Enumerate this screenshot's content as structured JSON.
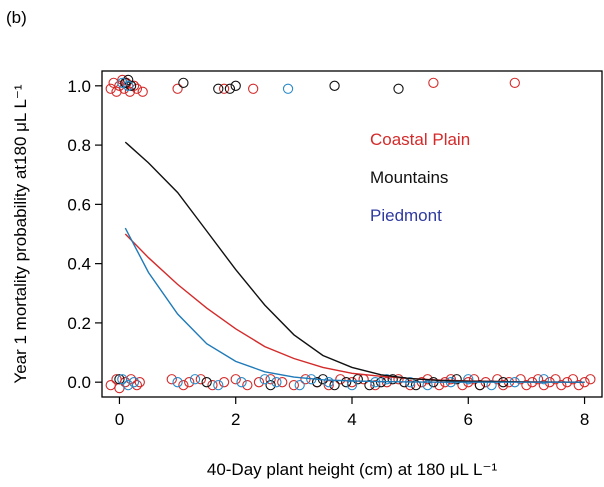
{
  "panel_label": "(b)",
  "chart_data": {
    "type": "scatter",
    "xlabel": "40-Day plant height (cm) at 180 μL L⁻¹",
    "ylabel": "Year 1 mortality probability at180 μL L⁻¹",
    "xlim": [
      -0.3,
      8.3
    ],
    "ylim": [
      -0.05,
      1.05
    ],
    "x_ticks": [
      0,
      2,
      4,
      6,
      8
    ],
    "x_tick_labels": [
      "0",
      "2",
      "4",
      "6",
      "8"
    ],
    "y_ticks": [
      0.0,
      0.2,
      0.4,
      0.6,
      0.8,
      1.0
    ],
    "y_tick_labels": [
      "0.0",
      "0.2",
      "0.4",
      "0.6",
      "0.8",
      "1.0"
    ],
    "legend": {
      "position": "right",
      "entries": [
        "Coastal Plain",
        "Mountains",
        "Piedmont"
      ]
    },
    "colors": {
      "Coastal Plain": "#d42a2a",
      "Mountains": "#111111",
      "Piedmont": "#2f3aa0",
      "Piedmont_curve": "#1f7ab8",
      "Piedmont_points": "#2a8ac8"
    },
    "series": [
      {
        "name": "Coastal Plain",
        "curve": {
          "x": [
            0.1,
            0.5,
            1.0,
            1.5,
            2.0,
            2.5,
            3.0,
            3.5,
            4.0,
            4.5,
            5.0,
            5.5,
            6.0,
            7.0,
            8.0
          ],
          "y": [
            0.5,
            0.42,
            0.33,
            0.25,
            0.18,
            0.12,
            0.08,
            0.05,
            0.03,
            0.02,
            0.012,
            0.007,
            0.004,
            0.001,
            0.0
          ]
        },
        "points": [
          {
            "x": -0.15,
            "y": 0.99
          },
          {
            "x": -0.1,
            "y": 1.01
          },
          {
            "x": -0.05,
            "y": 0.98
          },
          {
            "x": 0.0,
            "y": 1.0
          },
          {
            "x": 0.05,
            "y": 1.02
          },
          {
            "x": 0.08,
            "y": 0.99
          },
          {
            "x": 0.12,
            "y": 1.01
          },
          {
            "x": 0.18,
            "y": 0.98
          },
          {
            "x": 0.25,
            "y": 1.0
          },
          {
            "x": 0.3,
            "y": 0.99
          },
          {
            "x": 0.4,
            "y": 0.98
          },
          {
            "x": 1.0,
            "y": 0.99
          },
          {
            "x": 1.8,
            "y": 0.99
          },
          {
            "x": 2.3,
            "y": 0.99
          },
          {
            "x": 5.4,
            "y": 1.01
          },
          {
            "x": 6.8,
            "y": 1.01
          },
          {
            "x": -0.15,
            "y": -0.01
          },
          {
            "x": -0.05,
            "y": 0.01
          },
          {
            "x": 0.0,
            "y": -0.02
          },
          {
            "x": 0.1,
            "y": 0.0
          },
          {
            "x": 0.2,
            "y": 0.01
          },
          {
            "x": 0.3,
            "y": -0.01
          },
          {
            "x": 0.35,
            "y": 0.0
          },
          {
            "x": 0.9,
            "y": 0.01
          },
          {
            "x": 1.1,
            "y": -0.01
          },
          {
            "x": 1.2,
            "y": 0.0
          },
          {
            "x": 1.4,
            "y": 0.01
          },
          {
            "x": 1.6,
            "y": -0.01
          },
          {
            "x": 1.8,
            "y": 0.0
          },
          {
            "x": 2.0,
            "y": 0.01
          },
          {
            "x": 2.2,
            "y": -0.01
          },
          {
            "x": 2.4,
            "y": 0.0
          },
          {
            "x": 2.6,
            "y": 0.01
          },
          {
            "x": 2.8,
            "y": 0.0
          },
          {
            "x": 3.0,
            "y": -0.01
          },
          {
            "x": 3.2,
            "y": 0.01
          },
          {
            "x": 3.4,
            "y": 0.0
          },
          {
            "x": 3.6,
            "y": -0.01
          },
          {
            "x": 3.8,
            "y": 0.01
          },
          {
            "x": 4.0,
            "y": 0.0
          },
          {
            "x": 4.2,
            "y": 0.01
          },
          {
            "x": 4.4,
            "y": -0.01
          },
          {
            "x": 4.6,
            "y": 0.0
          },
          {
            "x": 4.8,
            "y": 0.01
          },
          {
            "x": 5.0,
            "y": -0.01
          },
          {
            "x": 5.2,
            "y": 0.0
          },
          {
            "x": 5.3,
            "y": 0.01
          },
          {
            "x": 5.5,
            "y": -0.01
          },
          {
            "x": 5.6,
            "y": 0.0
          },
          {
            "x": 5.7,
            "y": 0.01
          },
          {
            "x": 5.9,
            "y": -0.01
          },
          {
            "x": 6.0,
            "y": 0.0
          },
          {
            "x": 6.1,
            "y": 0.01
          },
          {
            "x": 6.2,
            "y": -0.01
          },
          {
            "x": 6.3,
            "y": 0.0
          },
          {
            "x": 6.5,
            "y": 0.01
          },
          {
            "x": 6.6,
            "y": -0.01
          },
          {
            "x": 6.7,
            "y": 0.0
          },
          {
            "x": 6.9,
            "y": 0.01
          },
          {
            "x": 7.0,
            "y": -0.01
          },
          {
            "x": 7.1,
            "y": 0.0
          },
          {
            "x": 7.2,
            "y": 0.01
          },
          {
            "x": 7.3,
            "y": -0.01
          },
          {
            "x": 7.4,
            "y": 0.0
          },
          {
            "x": 7.5,
            "y": 0.01
          },
          {
            "x": 7.6,
            "y": -0.01
          },
          {
            "x": 7.7,
            "y": 0.0
          },
          {
            "x": 7.8,
            "y": 0.01
          },
          {
            "x": 7.9,
            "y": -0.01
          },
          {
            "x": 8.0,
            "y": 0.0
          },
          {
            "x": 8.1,
            "y": 0.01
          }
        ]
      },
      {
        "name": "Mountains",
        "curve": {
          "x": [
            0.1,
            0.5,
            1.0,
            1.5,
            2.0,
            2.5,
            3.0,
            3.5,
            4.0,
            4.5,
            5.0,
            5.5,
            6.0,
            7.0,
            8.0
          ],
          "y": [
            0.81,
            0.74,
            0.64,
            0.51,
            0.38,
            0.26,
            0.16,
            0.09,
            0.05,
            0.025,
            0.012,
            0.006,
            0.003,
            0.001,
            0.0
          ]
        },
        "points": [
          {
            "x": 0.1,
            "y": 1.01
          },
          {
            "x": 0.15,
            "y": 1.02
          },
          {
            "x": 0.2,
            "y": 1.0
          },
          {
            "x": 1.1,
            "y": 1.01
          },
          {
            "x": 1.9,
            "y": 0.99
          },
          {
            "x": 2.0,
            "y": 1.0
          },
          {
            "x": 1.7,
            "y": 0.99
          },
          {
            "x": 3.7,
            "y": 1.0
          },
          {
            "x": 4.8,
            "y": 0.99
          },
          {
            "x": 0.0,
            "y": 0.01
          },
          {
            "x": 1.5,
            "y": 0.0
          },
          {
            "x": 2.6,
            "y": -0.01
          },
          {
            "x": 3.4,
            "y": 0.0
          },
          {
            "x": 3.5,
            "y": 0.01
          },
          {
            "x": 3.7,
            "y": -0.01
          },
          {
            "x": 3.9,
            "y": 0.0
          },
          {
            "x": 4.1,
            "y": 0.01
          },
          {
            "x": 4.3,
            "y": -0.01
          },
          {
            "x": 4.5,
            "y": 0.0
          },
          {
            "x": 4.7,
            "y": 0.01
          },
          {
            "x": 4.9,
            "y": 0.0
          },
          {
            "x": 5.1,
            "y": -0.01
          },
          {
            "x": 5.4,
            "y": 0.0
          },
          {
            "x": 5.8,
            "y": 0.01
          },
          {
            "x": 6.2,
            "y": -0.01
          },
          {
            "x": 6.6,
            "y": 0.0
          }
        ]
      },
      {
        "name": "Piedmont",
        "curve": {
          "x": [
            0.1,
            0.5,
            1.0,
            1.5,
            2.0,
            2.5,
            3.0,
            3.5,
            4.0,
            4.5,
            5.0,
            5.5,
            6.0,
            7.0,
            8.0
          ],
          "y": [
            0.52,
            0.37,
            0.23,
            0.13,
            0.07,
            0.035,
            0.017,
            0.008,
            0.004,
            0.002,
            0.001,
            0.0,
            0.0,
            0.0,
            0.0
          ]
        },
        "points": [
          {
            "x": 0.05,
            "y": 1.01
          },
          {
            "x": 0.15,
            "y": 1.0
          },
          {
            "x": 2.9,
            "y": 0.99
          },
          {
            "x": 0.05,
            "y": 0.01
          },
          {
            "x": 0.15,
            "y": -0.01
          },
          {
            "x": 0.25,
            "y": 0.0
          },
          {
            "x": 1.0,
            "y": 0.0
          },
          {
            "x": 1.3,
            "y": 0.01
          },
          {
            "x": 1.7,
            "y": -0.01
          },
          {
            "x": 2.1,
            "y": 0.0
          },
          {
            "x": 2.5,
            "y": 0.01
          },
          {
            "x": 2.7,
            "y": 0.0
          },
          {
            "x": 3.1,
            "y": -0.01
          },
          {
            "x": 3.3,
            "y": 0.01
          },
          {
            "x": 3.6,
            "y": 0.0
          },
          {
            "x": 4.0,
            "y": -0.01
          },
          {
            "x": 4.4,
            "y": 0.0
          },
          {
            "x": 4.6,
            "y": 0.01
          },
          {
            "x": 5.0,
            "y": 0.0
          },
          {
            "x": 5.3,
            "y": -0.01
          },
          {
            "x": 5.7,
            "y": 0.0
          },
          {
            "x": 6.0,
            "y": 0.01
          },
          {
            "x": 6.4,
            "y": -0.01
          },
          {
            "x": 6.8,
            "y": 0.0
          },
          {
            "x": 7.3,
            "y": 0.01
          }
        ]
      }
    ]
  }
}
